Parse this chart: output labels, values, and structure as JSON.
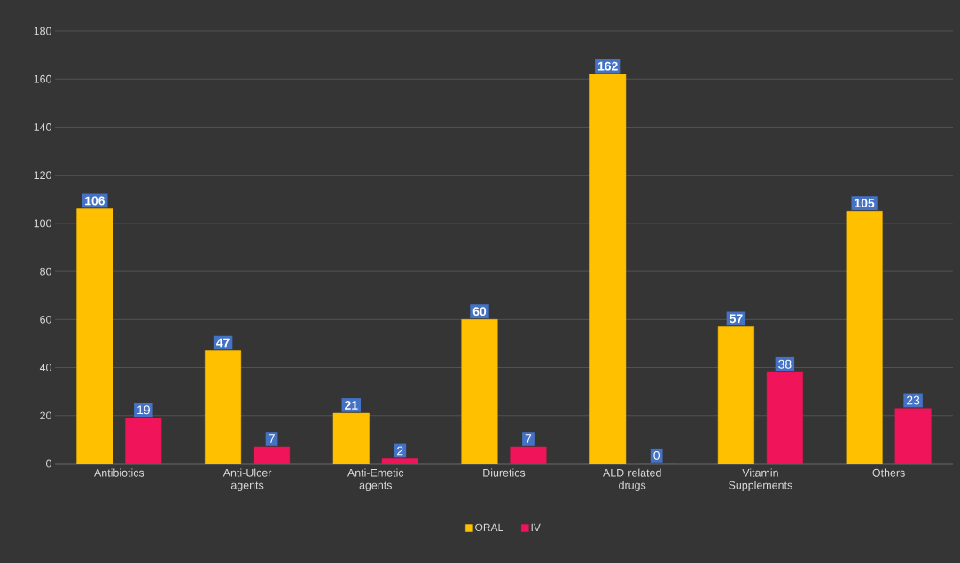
{
  "chart_data": {
    "type": "bar",
    "categories": [
      "Antibiotics",
      "Anti-Ulcer agents",
      "Anti-Emetic agents",
      "Diuretics",
      "ALD related drugs",
      "Vitamin Supplements",
      "Others"
    ],
    "series": [
      {
        "name": "ORAL",
        "color": "#ffc000",
        "values": [
          106,
          47,
          21,
          60,
          162,
          57,
          105
        ]
      },
      {
        "name": "IV",
        "color": "#f0145a",
        "values": [
          19,
          7,
          2,
          7,
          0,
          38,
          23
        ]
      }
    ],
    "ylim": [
      0,
      180
    ],
    "yticks": [
      0,
      20,
      40,
      60,
      80,
      100,
      120,
      140,
      160,
      180
    ],
    "grid": "y",
    "legend": "bottom",
    "data_labels": true
  }
}
